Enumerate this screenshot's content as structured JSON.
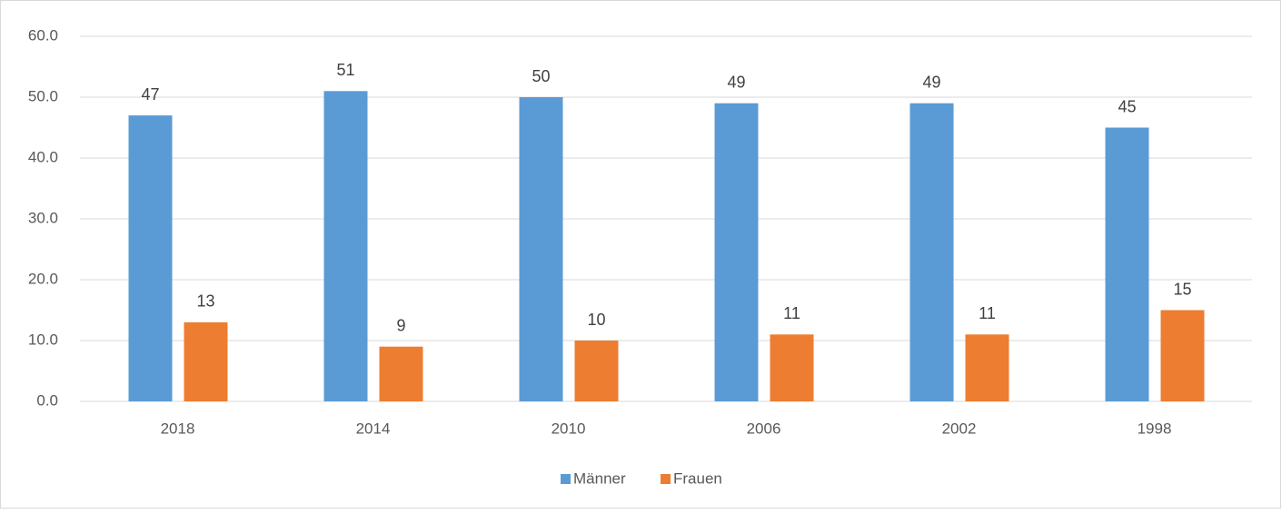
{
  "chart_data": {
    "type": "bar",
    "categories": [
      "2018",
      "2014",
      "2010",
      "2006",
      "2002",
      "1998"
    ],
    "series": [
      {
        "name": "Männer",
        "color": "#5b9bd5",
        "values": [
          47,
          51,
          50,
          49,
          49,
          45
        ]
      },
      {
        "name": "Frauen",
        "color": "#ed7d31",
        "values": [
          13,
          9,
          10,
          11,
          11,
          15
        ]
      }
    ],
    "ylim": [
      0,
      60
    ],
    "yticks": [
      {
        "value": 0,
        "label": "0.0"
      },
      {
        "value": 10,
        "label": "10.0"
      },
      {
        "value": 20,
        "label": "20.0"
      },
      {
        "value": 30,
        "label": "30.0"
      },
      {
        "value": 40,
        "label": "40.0"
      },
      {
        "value": 50,
        "label": "50.0"
      },
      {
        "value": 60,
        "label": "60.0"
      }
    ],
    "grid": true,
    "legend": "bottom",
    "data_labels": true
  }
}
